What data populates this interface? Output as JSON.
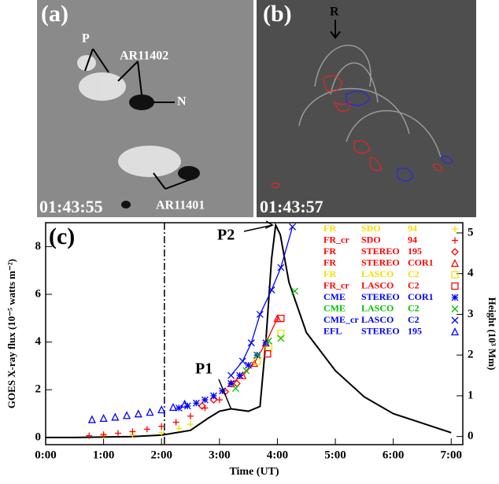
{
  "panels": [
    {
      "label": "(a)",
      "time": "01:43:55",
      "annotations": [
        "P",
        "AR11402",
        "N",
        "AR11401"
      ]
    },
    {
      "label": "(b)",
      "time": "01:43:57",
      "annotations": [
        "R"
      ]
    }
  ],
  "chart_data": {
    "type": "line",
    "panel_label": "(c)",
    "xlabel": "Time (UT)",
    "ylabel": "GOES X-ray flux (10⁻⁵ watts m⁻²)",
    "y2label": "Height (10³ Mm)",
    "xlim": [
      0,
      7.2
    ],
    "ylim": [
      -0.3,
      9
    ],
    "y2lim": [
      -0.2,
      5.25
    ],
    "xticks": [
      {
        "value": 0,
        "label": "0:00"
      },
      {
        "value": 1,
        "label": "1:00"
      },
      {
        "value": 2,
        "label": "2:00"
      },
      {
        "value": 3,
        "label": "3:00"
      },
      {
        "value": 4,
        "label": "4:00"
      },
      {
        "value": 5,
        "label": "5:00"
      },
      {
        "value": 6,
        "label": "6:00"
      },
      {
        "value": 7,
        "label": "7:00"
      }
    ],
    "yticks": [
      0,
      2,
      4,
      6,
      8
    ],
    "y2ticks": [
      0,
      1,
      2,
      3,
      4,
      5
    ],
    "vline": 2.05,
    "annotations": [
      "P1",
      "P2"
    ],
    "series": [
      {
        "color": "#000000",
        "axis": "y",
        "line": true,
        "marker": "none",
        "x": [
          0,
          0.5,
          1,
          1.5,
          2,
          2.5,
          2.8,
          3,
          3.2,
          3.5,
          3.7,
          3.8,
          3.9,
          3.97,
          4.05,
          4.2,
          4.5,
          5,
          5.5,
          6,
          6.5,
          7
        ],
        "values": [
          0,
          0,
          0.02,
          0.04,
          0.1,
          0.3,
          0.8,
          1.1,
          1.2,
          1.1,
          1.3,
          4,
          7.5,
          8.9,
          8.5,
          6.5,
          4.4,
          2.8,
          1.7,
          1,
          0.6,
          0.2
        ]
      },
      {
        "name": "FR",
        "instrument": "SDO",
        "channel": "94",
        "color": "#f0e000",
        "axis": "y2",
        "marker": "plus",
        "x": [
          1,
          1.5,
          2,
          2.3,
          2.5
        ],
        "values": [
          0.02,
          0.05,
          0.1,
          0.2,
          0.3
        ]
      },
      {
        "name": "FR_cr",
        "instrument": "SDO",
        "channel": "94",
        "color": "#ff0000",
        "axis": "y2",
        "marker": "plus",
        "x": [
          0.75,
          1,
          1.25,
          1.5,
          1.75,
          2,
          2.25,
          2.5,
          2.75,
          3
        ],
        "values": [
          0.02,
          0.05,
          0.08,
          0.12,
          0.18,
          0.25,
          0.35,
          0.5,
          0.7,
          0.9
        ]
      },
      {
        "name": "FR",
        "instrument": "STEREO",
        "channel": "195",
        "color": "#ff0000",
        "axis": "y2",
        "marker": "diamond",
        "x": [
          2.7,
          2.9,
          3.1,
          3.3
        ],
        "values": [
          0.75,
          0.9,
          1.1,
          1.3
        ]
      },
      {
        "name": "FR",
        "instrument": "STEREO",
        "channel": "COR1",
        "color": "#ff0000",
        "axis": "y2",
        "marker": "triangle",
        "line": true,
        "x": [
          3.2,
          3.4,
          3.6,
          3.8,
          4
        ],
        "values": [
          1.3,
          1.5,
          1.8,
          2.3,
          2.9
        ]
      },
      {
        "name": "FR",
        "instrument": "LASCO",
        "channel": "C2",
        "color": "#f0e000",
        "axis": "y2",
        "marker": "square",
        "x": [
          3.65,
          3.85,
          4.06
        ],
        "values": [
          1.85,
          2.2,
          2.53
        ]
      },
      {
        "name": "FR_cr",
        "instrument": "LASCO",
        "channel": "C2",
        "color": "#ff0000",
        "axis": "y2",
        "marker": "square",
        "x": [
          3.83,
          4.06
        ],
        "values": [
          2.03,
          2.9
        ]
      },
      {
        "name": "CME",
        "instrument": "STEREO",
        "channel": "COR1",
        "color": "#0000ff",
        "axis": "y2",
        "marker": "asterisk",
        "x": [
          2.3,
          2.45,
          2.6,
          2.75,
          2.9,
          3.05,
          3.2,
          3.35,
          3.5,
          3.65,
          3.8
        ],
        "values": [
          0.7,
          0.75,
          0.82,
          0.9,
          1,
          1.12,
          1.3,
          1.5,
          1.75,
          2.0,
          2.3
        ]
      },
      {
        "name": "CME",
        "instrument": "LASCO",
        "channel": "C2",
        "color": "#00c000",
        "axis": "y2",
        "marker": "cross",
        "x": [
          3.28,
          3.46,
          3.66,
          3.85,
          4.06,
          4.3
        ],
        "values": [
          1.18,
          1.62,
          2,
          2.35,
          2.41,
          3.57
        ]
      },
      {
        "name": "CME_cr",
        "instrument": "LASCO",
        "channel": "C2",
        "color": "#0000ff",
        "axis": "y2",
        "marker": "cross",
        "line": true,
        "x": [
          3.2,
          3.4,
          3.55,
          3.7,
          3.9,
          4.06,
          4.26
        ],
        "values": [
          1.5,
          1.85,
          2.3,
          3,
          3.6,
          4.15,
          5.15
        ]
      },
      {
        "name": "EFL",
        "instrument": "STEREO",
        "channel": "195",
        "color": "#0000ff",
        "axis": "y2",
        "marker": "triangle",
        "x": [
          0.8,
          1,
          1.2,
          1.4,
          1.6,
          1.8,
          2,
          2.2,
          2.4
        ],
        "values": [
          0.42,
          0.45,
          0.48,
          0.52,
          0.56,
          0.6,
          0.66,
          0.72,
          0.8
        ]
      }
    ]
  }
}
